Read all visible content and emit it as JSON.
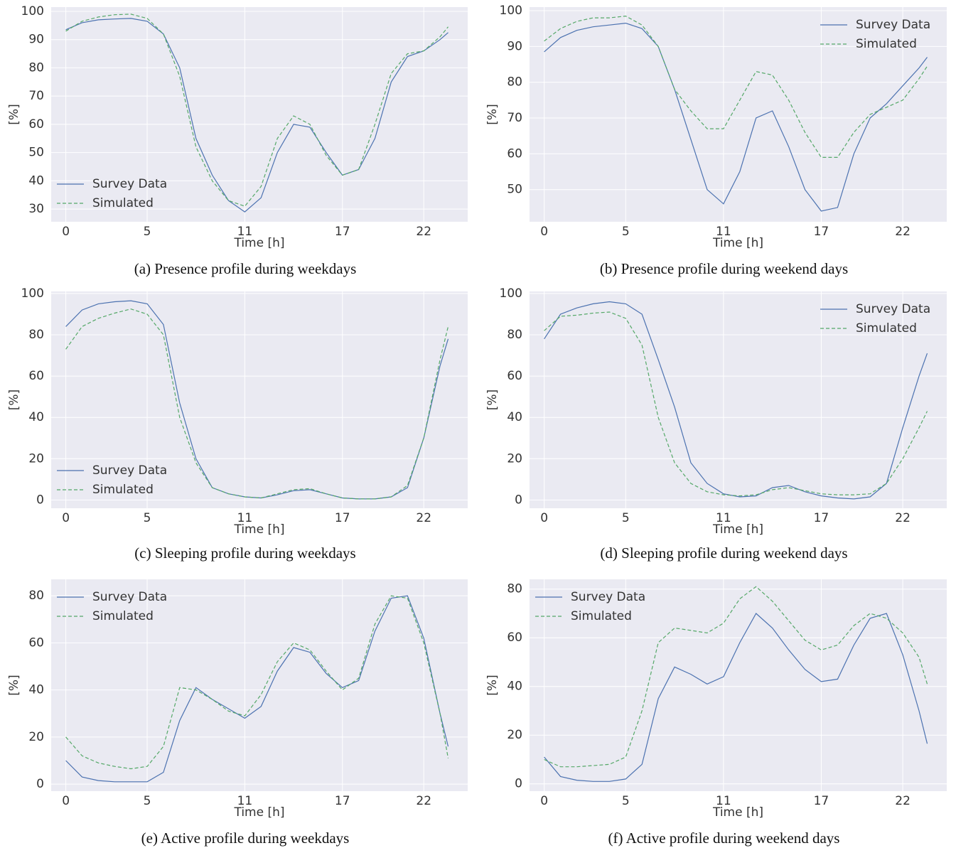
{
  "chart_data": [
    {
      "type": "line",
      "caption": "(a) Presence profile during weekdays",
      "xlabel": "Time [h]",
      "ylabel": "[%]",
      "x": [
        0,
        1,
        2,
        3,
        4,
        5,
        6,
        7,
        8,
        9,
        10,
        11,
        12,
        13,
        14,
        15,
        16,
        17,
        18,
        19,
        20,
        21,
        22,
        23,
        23.5
      ],
      "series": [
        {
          "name": "Survey Data",
          "color": "#4c72b0",
          "values": [
            93.5,
            96,
            97,
            97.3,
            97.5,
            96.5,
            92,
            80,
            55,
            42,
            33,
            29,
            34,
            50,
            60,
            59,
            50,
            42,
            44,
            55,
            75,
            84,
            86,
            90,
            92.5
          ]
        },
        {
          "name": "Simulated",
          "color": "#55a868",
          "values": [
            93,
            96.5,
            98,
            98.8,
            99,
            97.5,
            92,
            77,
            52,
            40,
            33,
            31,
            38,
            55,
            63,
            60,
            49,
            42,
            44,
            60,
            78,
            85,
            86,
            91,
            94.5
          ]
        }
      ],
      "xlim": [
        -0.9,
        24.7
      ],
      "xticks": [
        0,
        5,
        11,
        17,
        22
      ],
      "ylim": [
        25.5,
        101.5
      ],
      "yticks": [
        30,
        40,
        50,
        60,
        70,
        80,
        90,
        100
      ],
      "grid": true,
      "legend_loc": "lower left"
    },
    {
      "type": "line",
      "caption": "(b) Presence profile during weekend days",
      "xlabel": "Time [h]",
      "ylabel": "[%]",
      "x": [
        0,
        1,
        2,
        3,
        4,
        5,
        6,
        7,
        8,
        9,
        10,
        11,
        12,
        13,
        14,
        15,
        16,
        17,
        18,
        19,
        20,
        21,
        22,
        23,
        23.5
      ],
      "series": [
        {
          "name": "Survey Data",
          "color": "#4c72b0",
          "values": [
            88.5,
            92.5,
            94.5,
            95.5,
            96,
            96.5,
            95,
            90,
            78,
            64,
            50,
            46,
            55,
            70,
            72,
            62,
            50,
            44,
            45,
            60,
            70,
            74,
            79,
            84,
            87
          ]
        },
        {
          "name": "Simulated",
          "color": "#55a868",
          "values": [
            91.5,
            95,
            97,
            98,
            98,
            98.5,
            96,
            90,
            78,
            72,
            67,
            67,
            75,
            83,
            82,
            75,
            66,
            59,
            59,
            66,
            71,
            73,
            75,
            81,
            84.5
          ]
        }
      ],
      "xlim": [
        -0.9,
        24.7
      ],
      "xticks": [
        0,
        5,
        11,
        17,
        22
      ],
      "ylim": [
        41,
        101
      ],
      "yticks": [
        50,
        60,
        70,
        80,
        90,
        100
      ],
      "grid": true,
      "legend_loc": "upper right"
    },
    {
      "type": "line",
      "caption": "(c) Sleeping profile during weekdays",
      "xlabel": "Time [h]",
      "ylabel": "[%]",
      "x": [
        0,
        1,
        2,
        3,
        4,
        5,
        6,
        7,
        8,
        9,
        10,
        11,
        12,
        13,
        14,
        15,
        16,
        17,
        18,
        19,
        20,
        21,
        22,
        23,
        23.5
      ],
      "series": [
        {
          "name": "Survey Data",
          "color": "#4c72b0",
          "values": [
            84,
            92,
            95,
            96,
            96.5,
            95,
            85,
            47,
            20,
            6,
            3,
            1.5,
            1,
            2.5,
            4.5,
            5,
            3,
            1,
            0.5,
            0.5,
            1.5,
            6,
            30,
            65,
            78
          ]
        },
        {
          "name": "Simulated",
          "color": "#55a868",
          "values": [
            73,
            84,
            88,
            90.5,
            92.5,
            90,
            80,
            40,
            18,
            6,
            3,
            1.5,
            1,
            3,
            5,
            5.5,
            3,
            1,
            0.5,
            0.5,
            1.5,
            7,
            30,
            68,
            84
          ]
        }
      ],
      "xlim": [
        -0.9,
        24.7
      ],
      "xticks": [
        0,
        5,
        11,
        17,
        22
      ],
      "ylim": [
        -4,
        101
      ],
      "yticks": [
        0,
        20,
        40,
        60,
        80,
        100
      ],
      "grid": true,
      "legend_loc": "lower left"
    },
    {
      "type": "line",
      "caption": "(d) Sleeping profile during weekend days",
      "xlabel": "Time [h]",
      "ylabel": "[%]",
      "x": [
        0,
        1,
        2,
        3,
        4,
        5,
        6,
        7,
        8,
        9,
        10,
        11,
        12,
        13,
        14,
        15,
        16,
        17,
        18,
        19,
        20,
        21,
        22,
        23,
        23.5
      ],
      "series": [
        {
          "name": "Survey Data",
          "color": "#4c72b0",
          "values": [
            78,
            90,
            93,
            95,
            96,
            95,
            90,
            68,
            45,
            18,
            8,
            3,
            1.5,
            2,
            6,
            7,
            4,
            2,
            1,
            0.5,
            1.5,
            8,
            35,
            60,
            71
          ]
        },
        {
          "name": "Simulated",
          "color": "#55a868",
          "values": [
            82,
            89,
            89.5,
            90.5,
            91,
            88,
            75,
            40,
            18,
            8,
            4,
            2.5,
            2,
            2.5,
            5,
            6,
            4.5,
            3,
            2.5,
            2.5,
            3,
            8,
            20,
            35,
            43
          ]
        }
      ],
      "xlim": [
        -0.9,
        24.7
      ],
      "xticks": [
        0,
        5,
        11,
        17,
        22
      ],
      "ylim": [
        -4,
        101
      ],
      "yticks": [
        0,
        20,
        40,
        60,
        80,
        100
      ],
      "grid": true,
      "legend_loc": "upper right"
    },
    {
      "type": "line",
      "caption": "(e) Active profile during weekdays",
      "xlabel": "Time [h]",
      "ylabel": "[%]",
      "x": [
        0,
        1,
        2,
        3,
        4,
        5,
        6,
        7,
        8,
        9,
        10,
        11,
        12,
        13,
        14,
        15,
        16,
        17,
        18,
        19,
        20,
        21,
        22,
        23,
        23.5
      ],
      "series": [
        {
          "name": "Survey Data",
          "color": "#4c72b0",
          "values": [
            10,
            3,
            1.5,
            1,
            1,
            1,
            5,
            27,
            41,
            36,
            32,
            28,
            33,
            48,
            58,
            56,
            47,
            41,
            44,
            65,
            79,
            80,
            62,
            30,
            16
          ]
        },
        {
          "name": "Simulated",
          "color": "#55a868",
          "values": [
            20,
            12,
            9,
            7.5,
            6.5,
            7.5,
            16,
            41,
            40,
            36,
            31,
            29,
            38,
            52,
            60,
            57,
            48,
            40,
            45,
            68,
            80,
            79,
            60,
            30,
            11
          ]
        }
      ],
      "xlim": [
        -0.9,
        24.7
      ],
      "xticks": [
        0,
        5,
        11,
        17,
        22
      ],
      "ylim": [
        -3,
        87
      ],
      "yticks": [
        0,
        20,
        40,
        60,
        80
      ],
      "grid": true,
      "legend_loc": "upper left"
    },
    {
      "type": "line",
      "caption": "(f) Active profile during weekend days",
      "xlabel": "Time [h]",
      "ylabel": "[%]",
      "x": [
        0,
        1,
        2,
        3,
        4,
        5,
        6,
        7,
        8,
        9,
        10,
        11,
        12,
        13,
        14,
        15,
        16,
        17,
        18,
        19,
        20,
        21,
        22,
        23,
        23.5
      ],
      "series": [
        {
          "name": "Survey Data",
          "color": "#4c72b0",
          "values": [
            11,
            3,
            1.5,
            1,
            1,
            2,
            8,
            35,
            48,
            45,
            41,
            44,
            58,
            70,
            64,
            55,
            47,
            42,
            43,
            57,
            68,
            70,
            53,
            30,
            16.5
          ]
        },
        {
          "name": "Simulated",
          "color": "#55a868",
          "values": [
            10,
            7,
            7,
            7.5,
            8,
            11,
            30,
            58,
            64,
            63,
            62,
            66,
            76,
            81,
            75,
            67,
            59,
            55,
            57,
            65,
            70,
            68,
            62,
            52,
            41
          ]
        }
      ],
      "xlim": [
        -0.9,
        24.7
      ],
      "xticks": [
        0,
        5,
        11,
        17,
        22
      ],
      "ylim": [
        -3,
        84
      ],
      "yticks": [
        0,
        20,
        40,
        60,
        80
      ],
      "grid": true,
      "legend_loc": "upper left"
    }
  ]
}
